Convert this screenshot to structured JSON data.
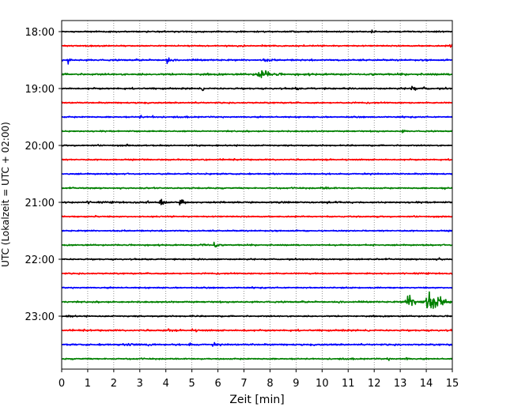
{
  "chart_data": {
    "type": "line",
    "title": "",
    "xlabel": "Zeit  [min]",
    "ylabel": "UTC (Lokalzeit = UTC + 02:00)",
    "xlim": [
      0,
      15
    ],
    "xticks": [
      "0",
      "1",
      "2",
      "3",
      "4",
      "5",
      "6",
      "7",
      "8",
      "9",
      "10",
      "11",
      "12",
      "13",
      "14",
      "15"
    ],
    "yticks": [
      "18:00",
      "19:00",
      "20:00",
      "21:00",
      "22:00",
      "23:00"
    ],
    "grid": "vertical dotted",
    "colors": [
      "#000000",
      "#ff0000",
      "#0000ff",
      "#008000"
    ],
    "traces": [
      {
        "start": "18:00",
        "color": "#000000",
        "noise": 0.5,
        "events": [
          [
            11.9,
            2.5,
            0.1
          ]
        ]
      },
      {
        "start": "18:15",
        "color": "#ff0000",
        "noise": 0.5,
        "events": [
          [
            7.7,
            2.2,
            0.1
          ],
          [
            14.9,
            3,
            0.1
          ]
        ]
      },
      {
        "start": "18:30",
        "color": "#0000ff",
        "noise": 0.6,
        "events": [
          [
            0.25,
            3.5,
            0.1
          ],
          [
            4.05,
            4,
            0.1
          ],
          [
            7.8,
            1.5,
            0.4
          ]
        ]
      },
      {
        "start": "18:45",
        "color": "#008000",
        "noise": 0.7,
        "events": [
          [
            7.6,
            6,
            0.3
          ],
          [
            8.2,
            1.5,
            0.4
          ]
        ]
      },
      {
        "start": "19:00",
        "color": "#000000",
        "noise": 0.6,
        "events": [
          [
            5.4,
            2,
            0.1
          ],
          [
            9.0,
            2,
            0.1
          ],
          [
            13.4,
            3.5,
            0.2
          ],
          [
            13.9,
            1.5,
            0.3
          ]
        ]
      },
      {
        "start": "19:15",
        "color": "#ff0000",
        "noise": 0.5,
        "events": []
      },
      {
        "start": "19:30",
        "color": "#0000ff",
        "noise": 0.5,
        "events": [
          [
            3.0,
            1.5,
            0.2
          ],
          [
            3.5,
            1.5,
            0.2
          ]
        ]
      },
      {
        "start": "19:45",
        "color": "#008000",
        "noise": 0.5,
        "events": [
          [
            13.1,
            2,
            0.1
          ]
        ]
      },
      {
        "start": "20:00",
        "color": "#000000",
        "noise": 0.5,
        "events": [
          [
            2.5,
            1.5,
            0.1
          ]
        ]
      },
      {
        "start": "20:15",
        "color": "#ff0000",
        "noise": 0.5,
        "events": []
      },
      {
        "start": "20:30",
        "color": "#0000ff",
        "noise": 0.5,
        "events": []
      },
      {
        "start": "20:45",
        "color": "#008000",
        "noise": 0.5,
        "events": [
          [
            10.0,
            1,
            1.2
          ],
          [
            14.7,
            1.2,
            0.2
          ]
        ]
      },
      {
        "start": "21:00",
        "color": "#000000",
        "noise": 0.6,
        "events": [
          [
            3.8,
            5,
            0.15
          ],
          [
            4.55,
            4,
            0.12
          ],
          [
            1.0,
            1.2,
            0.3
          ],
          [
            3.2,
            1.3,
            0.3
          ]
        ]
      },
      {
        "start": "21:15",
        "color": "#ff0000",
        "noise": 0.5,
        "events": [
          [
            1.3,
            2,
            0.1
          ]
        ]
      },
      {
        "start": "21:30",
        "color": "#0000ff",
        "noise": 0.5,
        "events": []
      },
      {
        "start": "21:45",
        "color": "#008000",
        "noise": 0.5,
        "events": [
          [
            5.4,
            2.5,
            0.2
          ],
          [
            5.85,
            3.5,
            0.15
          ]
        ]
      },
      {
        "start": "22:00",
        "color": "#000000",
        "noise": 0.5,
        "events": [
          [
            14.5,
            1.3,
            0.2
          ]
        ]
      },
      {
        "start": "22:15",
        "color": "#ff0000",
        "noise": 0.5,
        "events": []
      },
      {
        "start": "22:30",
        "color": "#0000ff",
        "noise": 0.5,
        "events": []
      },
      {
        "start": "22:45",
        "color": "#008000",
        "noise": 0.6,
        "events": [
          [
            13.3,
            6,
            0.4
          ],
          [
            14.05,
            9,
            0.5
          ]
        ]
      },
      {
        "start": "23:00",
        "color": "#000000",
        "noise": 0.5,
        "events": [
          [
            0.3,
            1.5,
            0.3
          ],
          [
            5.0,
            1.5,
            0.1
          ]
        ]
      },
      {
        "start": "23:15",
        "color": "#ff0000",
        "noise": 0.6,
        "events": [
          [
            4.1,
            2,
            0.1
          ],
          [
            10.8,
            2,
            0.1
          ],
          [
            5.0,
            1.2,
            0.6
          ],
          [
            7.0,
            1.1,
            0.5
          ]
        ]
      },
      {
        "start": "23:30",
        "color": "#0000ff",
        "noise": 0.6,
        "events": [
          [
            2.6,
            1.5,
            0.5
          ],
          [
            3.3,
            2,
            0.3
          ],
          [
            4.9,
            1.5,
            0.3
          ],
          [
            5.8,
            1.5,
            0.3
          ],
          [
            7.3,
            1.0,
            0.3
          ]
        ]
      },
      {
        "start": "23:45",
        "color": "#008000",
        "noise": 0.5,
        "events": [
          [
            13.2,
            2,
            0.15
          ],
          [
            12.5,
            1.2,
            0.3
          ]
        ]
      }
    ]
  }
}
